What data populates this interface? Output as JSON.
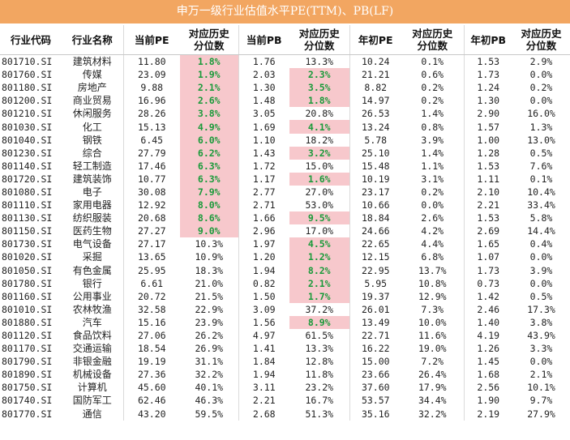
{
  "title": "申万一级行业估值水平PE(TTM)、PB(LF)",
  "headers": [
    "行业代码",
    "行业名称",
    "当前PE",
    "对应历史分位数",
    "当前PB",
    "对应历史分位数",
    "年初PE",
    "对应历史分位数",
    "年初PB",
    "对应历史分位数"
  ],
  "highlight_colors": {
    "cell_background": "#f7c8cc",
    "text": "#1a9a3a",
    "title_bar": "#f2a661"
  },
  "rows": [
    {
      "code": "801710.SI",
      "name": "建筑材料",
      "pe": "11.80",
      "pe_pct": "1.8%",
      "pe_hl": true,
      "pb": "1.76",
      "pb_pct": "13.3%",
      "pb_hl": false,
      "pe0": "10.24",
      "pe0_pct": "0.1%",
      "pb0": "1.53",
      "pb0_pct": "2.9%"
    },
    {
      "code": "801760.SI",
      "name": "传媒",
      "pe": "23.09",
      "pe_pct": "1.9%",
      "pe_hl": true,
      "pb": "2.03",
      "pb_pct": "2.3%",
      "pb_hl": true,
      "pe0": "21.21",
      "pe0_pct": "0.6%",
      "pb0": "1.73",
      "pb0_pct": "0.0%"
    },
    {
      "code": "801180.SI",
      "name": "房地产",
      "pe": "9.88",
      "pe_pct": "2.1%",
      "pe_hl": true,
      "pb": "1.30",
      "pb_pct": "3.5%",
      "pb_hl": true,
      "pe0": "8.82",
      "pe0_pct": "0.2%",
      "pb0": "1.24",
      "pb0_pct": "0.2%"
    },
    {
      "code": "801200.SI",
      "name": "商业贸易",
      "pe": "16.96",
      "pe_pct": "2.6%",
      "pe_hl": true,
      "pb": "1.48",
      "pb_pct": "1.8%",
      "pb_hl": true,
      "pe0": "14.97",
      "pe0_pct": "0.2%",
      "pb0": "1.30",
      "pb0_pct": "0.0%"
    },
    {
      "code": "801210.SI",
      "name": "休闲服务",
      "pe": "28.26",
      "pe_pct": "3.8%",
      "pe_hl": true,
      "pb": "3.05",
      "pb_pct": "20.8%",
      "pb_hl": false,
      "pe0": "26.53",
      "pe0_pct": "1.4%",
      "pb0": "2.90",
      "pb0_pct": "16.0%"
    },
    {
      "code": "801030.SI",
      "name": "化工",
      "pe": "15.13",
      "pe_pct": "4.9%",
      "pe_hl": true,
      "pb": "1.69",
      "pb_pct": "4.1%",
      "pb_hl": true,
      "pe0": "13.24",
      "pe0_pct": "0.8%",
      "pb0": "1.57",
      "pb0_pct": "1.3%"
    },
    {
      "code": "801040.SI",
      "name": "钢铁",
      "pe": "6.45",
      "pe_pct": "6.0%",
      "pe_hl": true,
      "pb": "1.10",
      "pb_pct": "18.2%",
      "pb_hl": false,
      "pe0": "5.78",
      "pe0_pct": "3.9%",
      "pb0": "1.00",
      "pb0_pct": "13.0%"
    },
    {
      "code": "801230.SI",
      "name": "综合",
      "pe": "27.79",
      "pe_pct": "6.2%",
      "pe_hl": true,
      "pb": "1.43",
      "pb_pct": "3.2%",
      "pb_hl": true,
      "pe0": "25.10",
      "pe0_pct": "1.4%",
      "pb0": "1.28",
      "pb0_pct": "0.5%"
    },
    {
      "code": "801140.SI",
      "name": "轻工制造",
      "pe": "17.46",
      "pe_pct": "6.3%",
      "pe_hl": true,
      "pb": "1.72",
      "pb_pct": "15.0%",
      "pb_hl": false,
      "pe0": "15.48",
      "pe0_pct": "1.1%",
      "pb0": "1.53",
      "pb0_pct": "7.6%"
    },
    {
      "code": "801720.SI",
      "name": "建筑装饰",
      "pe": "10.77",
      "pe_pct": "6.3%",
      "pe_hl": true,
      "pb": "1.17",
      "pb_pct": "1.6%",
      "pb_hl": true,
      "pe0": "10.19",
      "pe0_pct": "3.1%",
      "pb0": "1.11",
      "pb0_pct": "0.1%"
    },
    {
      "code": "801080.SI",
      "name": "电子",
      "pe": "30.08",
      "pe_pct": "7.9%",
      "pe_hl": true,
      "pb": "2.77",
      "pb_pct": "27.0%",
      "pb_hl": false,
      "pe0": "23.17",
      "pe0_pct": "0.2%",
      "pb0": "2.10",
      "pb0_pct": "10.4%"
    },
    {
      "code": "801110.SI",
      "name": "家用电器",
      "pe": "12.92",
      "pe_pct": "8.0%",
      "pe_hl": true,
      "pb": "2.71",
      "pb_pct": "53.0%",
      "pb_hl": false,
      "pe0": "10.66",
      "pe0_pct": "0.0%",
      "pb0": "2.21",
      "pb0_pct": "33.4%"
    },
    {
      "code": "801130.SI",
      "name": "纺织服装",
      "pe": "20.68",
      "pe_pct": "8.6%",
      "pe_hl": true,
      "pb": "1.66",
      "pb_pct": "9.5%",
      "pb_hl": true,
      "pe0": "18.84",
      "pe0_pct": "2.6%",
      "pb0": "1.53",
      "pb0_pct": "5.8%"
    },
    {
      "code": "801150.SI",
      "name": "医药生物",
      "pe": "27.27",
      "pe_pct": "9.0%",
      "pe_hl": true,
      "pb": "2.96",
      "pb_pct": "17.0%",
      "pb_hl": false,
      "pe0": "24.66",
      "pe0_pct": "4.2%",
      "pb0": "2.69",
      "pb0_pct": "14.4%"
    },
    {
      "code": "801730.SI",
      "name": "电气设备",
      "pe": "27.17",
      "pe_pct": "10.3%",
      "pe_hl": false,
      "pb": "1.97",
      "pb_pct": "4.5%",
      "pb_hl": true,
      "pe0": "22.65",
      "pe0_pct": "4.4%",
      "pb0": "1.65",
      "pb0_pct": "0.4%"
    },
    {
      "code": "801020.SI",
      "name": "采掘",
      "pe": "13.65",
      "pe_pct": "10.9%",
      "pe_hl": false,
      "pb": "1.20",
      "pb_pct": "1.2%",
      "pb_hl": true,
      "pe0": "12.15",
      "pe0_pct": "6.8%",
      "pb0": "1.07",
      "pb0_pct": "0.0%"
    },
    {
      "code": "801050.SI",
      "name": "有色金属",
      "pe": "25.95",
      "pe_pct": "18.3%",
      "pe_hl": false,
      "pb": "1.94",
      "pb_pct": "8.2%",
      "pb_hl": true,
      "pe0": "22.95",
      "pe0_pct": "13.7%",
      "pb0": "1.73",
      "pb0_pct": "3.9%"
    },
    {
      "code": "801780.SI",
      "name": "银行",
      "pe": "6.61",
      "pe_pct": "21.0%",
      "pe_hl": false,
      "pb": "0.82",
      "pb_pct": "2.1%",
      "pb_hl": true,
      "pe0": "5.95",
      "pe0_pct": "10.8%",
      "pb0": "0.73",
      "pb0_pct": "0.0%"
    },
    {
      "code": "801160.SI",
      "name": "公用事业",
      "pe": "20.72",
      "pe_pct": "21.5%",
      "pe_hl": false,
      "pb": "1.50",
      "pb_pct": "1.7%",
      "pb_hl": true,
      "pe0": "19.37",
      "pe0_pct": "12.9%",
      "pb0": "1.42",
      "pb0_pct": "0.5%"
    },
    {
      "code": "801010.SI",
      "name": "农林牧渔",
      "pe": "32.58",
      "pe_pct": "22.9%",
      "pe_hl": false,
      "pb": "3.09",
      "pb_pct": "37.2%",
      "pb_hl": false,
      "pe0": "26.01",
      "pe0_pct": "7.3%",
      "pb0": "2.46",
      "pb0_pct": "17.3%"
    },
    {
      "code": "801880.SI",
      "name": "汽车",
      "pe": "15.16",
      "pe_pct": "23.9%",
      "pe_hl": false,
      "pb": "1.56",
      "pb_pct": "8.9%",
      "pb_hl": true,
      "pe0": "13.49",
      "pe0_pct": "10.0%",
      "pb0": "1.40",
      "pb0_pct": "3.8%"
    },
    {
      "code": "801120.SI",
      "name": "食品饮料",
      "pe": "27.06",
      "pe_pct": "26.2%",
      "pe_hl": false,
      "pb": "4.97",
      "pb_pct": "61.5%",
      "pb_hl": false,
      "pe0": "22.71",
      "pe0_pct": "11.6%",
      "pb0": "4.19",
      "pb0_pct": "43.9%"
    },
    {
      "code": "801170.SI",
      "name": "交通运输",
      "pe": "18.54",
      "pe_pct": "26.9%",
      "pe_hl": false,
      "pb": "1.41",
      "pb_pct": "13.3%",
      "pb_hl": false,
      "pe0": "16.22",
      "pe0_pct": "19.0%",
      "pb0": "1.26",
      "pb0_pct": "3.3%"
    },
    {
      "code": "801790.SI",
      "name": "非银金融",
      "pe": "19.19",
      "pe_pct": "31.1%",
      "pe_hl": false,
      "pb": "1.84",
      "pb_pct": "12.8%",
      "pb_hl": false,
      "pe0": "15.00",
      "pe0_pct": "7.2%",
      "pb0": "1.45",
      "pb0_pct": "0.0%"
    },
    {
      "code": "801890.SI",
      "name": "机械设备",
      "pe": "27.36",
      "pe_pct": "32.2%",
      "pe_hl": false,
      "pb": "1.94",
      "pb_pct": "11.8%",
      "pb_hl": false,
      "pe0": "23.66",
      "pe0_pct": "26.4%",
      "pb0": "1.68",
      "pb0_pct": "2.1%"
    },
    {
      "code": "801750.SI",
      "name": "计算机",
      "pe": "45.60",
      "pe_pct": "40.1%",
      "pe_hl": false,
      "pb": "3.11",
      "pb_pct": "23.2%",
      "pb_hl": false,
      "pe0": "37.60",
      "pe0_pct": "17.9%",
      "pb0": "2.56",
      "pb0_pct": "10.1%"
    },
    {
      "code": "801740.SI",
      "name": "国防军工",
      "pe": "62.46",
      "pe_pct": "46.3%",
      "pe_hl": false,
      "pb": "2.21",
      "pb_pct": "16.7%",
      "pb_hl": false,
      "pe0": "53.57",
      "pe0_pct": "34.4%",
      "pb0": "1.90",
      "pb0_pct": "9.7%"
    },
    {
      "code": "801770.SI",
      "name": "通信",
      "pe": "43.20",
      "pe_pct": "59.5%",
      "pe_hl": false,
      "pb": "2.68",
      "pb_pct": "51.3%",
      "pb_hl": false,
      "pe0": "35.16",
      "pe0_pct": "32.2%",
      "pb0": "2.19",
      "pb0_pct": "27.9%"
    }
  ]
}
